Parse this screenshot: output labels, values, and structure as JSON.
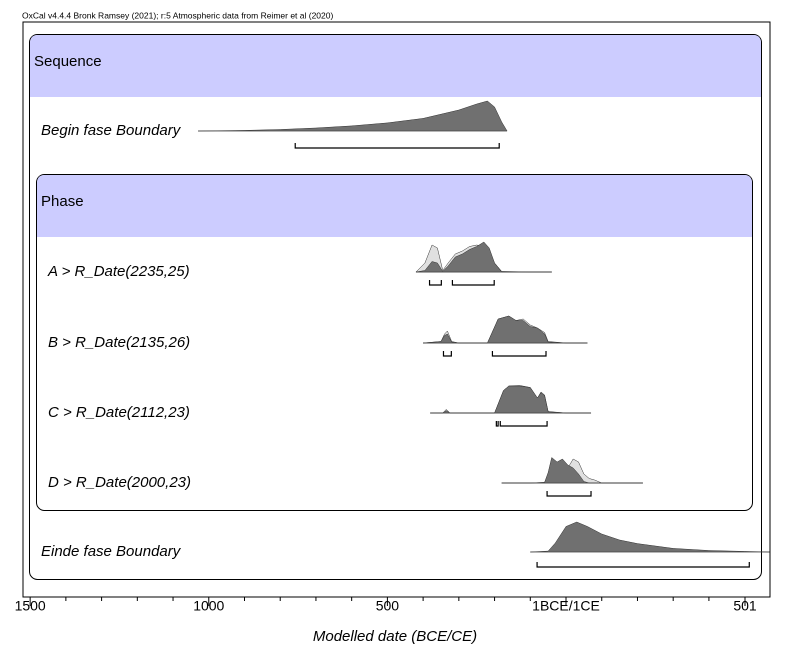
{
  "chart_data": {
    "type": "oxcal",
    "subtitle": "OxCal v4.4.4 Bronk Ramsey (2021); r:5 Atmospheric data from Reimer et al (2020)",
    "xlabel": "Modelled date (BCE/CE)",
    "xlim": [
      -1520,
      571
    ],
    "xticks": [
      {
        "value": -1500,
        "label": "1500"
      },
      {
        "value": -1000,
        "label": "1000"
      },
      {
        "value": -500,
        "label": "500"
      },
      {
        "value": 0,
        "label": "1BCE/1CE"
      },
      {
        "value": 501,
        "label": "501"
      }
    ],
    "xminorticks": [
      -1400,
      -1300,
      -1200,
      -1100,
      -900,
      -800,
      -700,
      -600,
      -400,
      -300,
      -200,
      -100,
      100,
      200,
      300,
      400
    ],
    "groups": [
      "Sequence",
      "Phase"
    ],
    "prior_color": "#e0e0e0",
    "posterior_color": "#707070",
    "items": [
      {
        "name": "Begin fase Boundary",
        "x": [
          -1030,
          -900,
          -800,
          -700,
          -600,
          -500,
          -400,
          -300,
          -250,
          -220,
          -200,
          -180,
          -165
        ],
        "posterior": [
          0,
          0.02,
          0.05,
          0.1,
          0.17,
          0.27,
          0.42,
          0.7,
          0.9,
          1,
          0.8,
          0.3,
          0
        ],
        "ranges": [
          [
            -758,
            -187
          ]
        ]
      },
      {
        "name": "A > R_Date(2235,25)",
        "x": [
          -420,
          -395,
          -375,
          -360,
          -345,
          -330,
          -310,
          -290,
          -270,
          -250,
          -230,
          -215,
          -200,
          -180,
          -100,
          -40
        ],
        "likelihood": [
          0,
          0.3,
          0.9,
          0.8,
          0.05,
          0.3,
          0.6,
          0.7,
          0.85,
          0.9,
          0.85,
          0.7,
          0.3,
          0.02,
          0,
          0
        ],
        "posterior": [
          0,
          0.05,
          0.35,
          0.3,
          0.02,
          0.2,
          0.5,
          0.6,
          0.75,
          0.85,
          1,
          0.8,
          0.3,
          0,
          0,
          0
        ],
        "ranges": [
          [
            -382,
            -349
          ],
          [
            -318,
            -201
          ]
        ]
      },
      {
        "name": "B > R_Date(2135,26)",
        "x": [
          -400,
          -350,
          -340,
          -332,
          -320,
          -300,
          -220,
          -205,
          -190,
          -175,
          -160,
          -140,
          -120,
          -100,
          -80,
          -60,
          -50,
          0,
          60
        ],
        "likelihood": [
          0,
          0.05,
          0.3,
          0.4,
          0.05,
          0,
          0,
          0.4,
          0.8,
          0.85,
          0.9,
          0.75,
          0.8,
          0.6,
          0.5,
          0.35,
          0.05,
          0,
          0
        ],
        "posterior": [
          0,
          0.05,
          0.25,
          0.3,
          0.03,
          0,
          0,
          0.4,
          0.8,
          0.85,
          0.9,
          0.75,
          0.75,
          0.55,
          0.5,
          0.3,
          0.03,
          0,
          0
        ],
        "ranges": [
          [
            -343,
            -321
          ],
          [
            -206,
            -56
          ]
        ]
      },
      {
        "name": "C > R_Date(2112,23)",
        "x": [
          -380,
          -345,
          -335,
          -325,
          -200,
          -190,
          -175,
          -160,
          -130,
          -100,
          -80,
          -70,
          -60,
          -50,
          0,
          70
        ],
        "likelihood": [
          0,
          0,
          0.12,
          0,
          0,
          0.3,
          0.75,
          0.9,
          0.92,
          0.85,
          0.5,
          0.7,
          0.6,
          0.05,
          0,
          0
        ],
        "posterior": [
          0,
          0,
          0.08,
          0,
          0,
          0.3,
          0.75,
          0.9,
          0.9,
          0.85,
          0.5,
          0.68,
          0.58,
          0.04,
          0,
          0
        ],
        "ranges": [
          [
            -195,
            -190
          ],
          [
            -184,
            -53
          ]
        ]
      },
      {
        "name": "D > R_Date(2000,23)",
        "x": [
          -180,
          -100,
          -60,
          -50,
          -40,
          -25,
          -10,
          5,
          20,
          35,
          50,
          65,
          80,
          100,
          215
        ],
        "likelihood": [
          0,
          0,
          0.02,
          0.3,
          0.7,
          0.6,
          0.65,
          0.5,
          0.8,
          0.7,
          0.3,
          0.15,
          0.1,
          0,
          0
        ],
        "posterior": [
          0,
          0,
          0.02,
          0.35,
          0.85,
          0.7,
          0.8,
          0.6,
          0.5,
          0.3,
          0.05,
          0,
          0,
          0,
          0
        ],
        "ranges": [
          [
            -53,
            70
          ]
        ]
      },
      {
        "name": "Einde fase Boundary",
        "x": [
          -100,
          -50,
          -30,
          0,
          30,
          60,
          100,
          150,
          200,
          300,
          400,
          500,
          570
        ],
        "posterior": [
          0,
          0.03,
          0.3,
          0.85,
          1,
          0.85,
          0.6,
          0.4,
          0.28,
          0.12,
          0.05,
          0.02,
          0
        ],
        "ranges": [
          [
            -81,
            513
          ]
        ]
      }
    ]
  }
}
